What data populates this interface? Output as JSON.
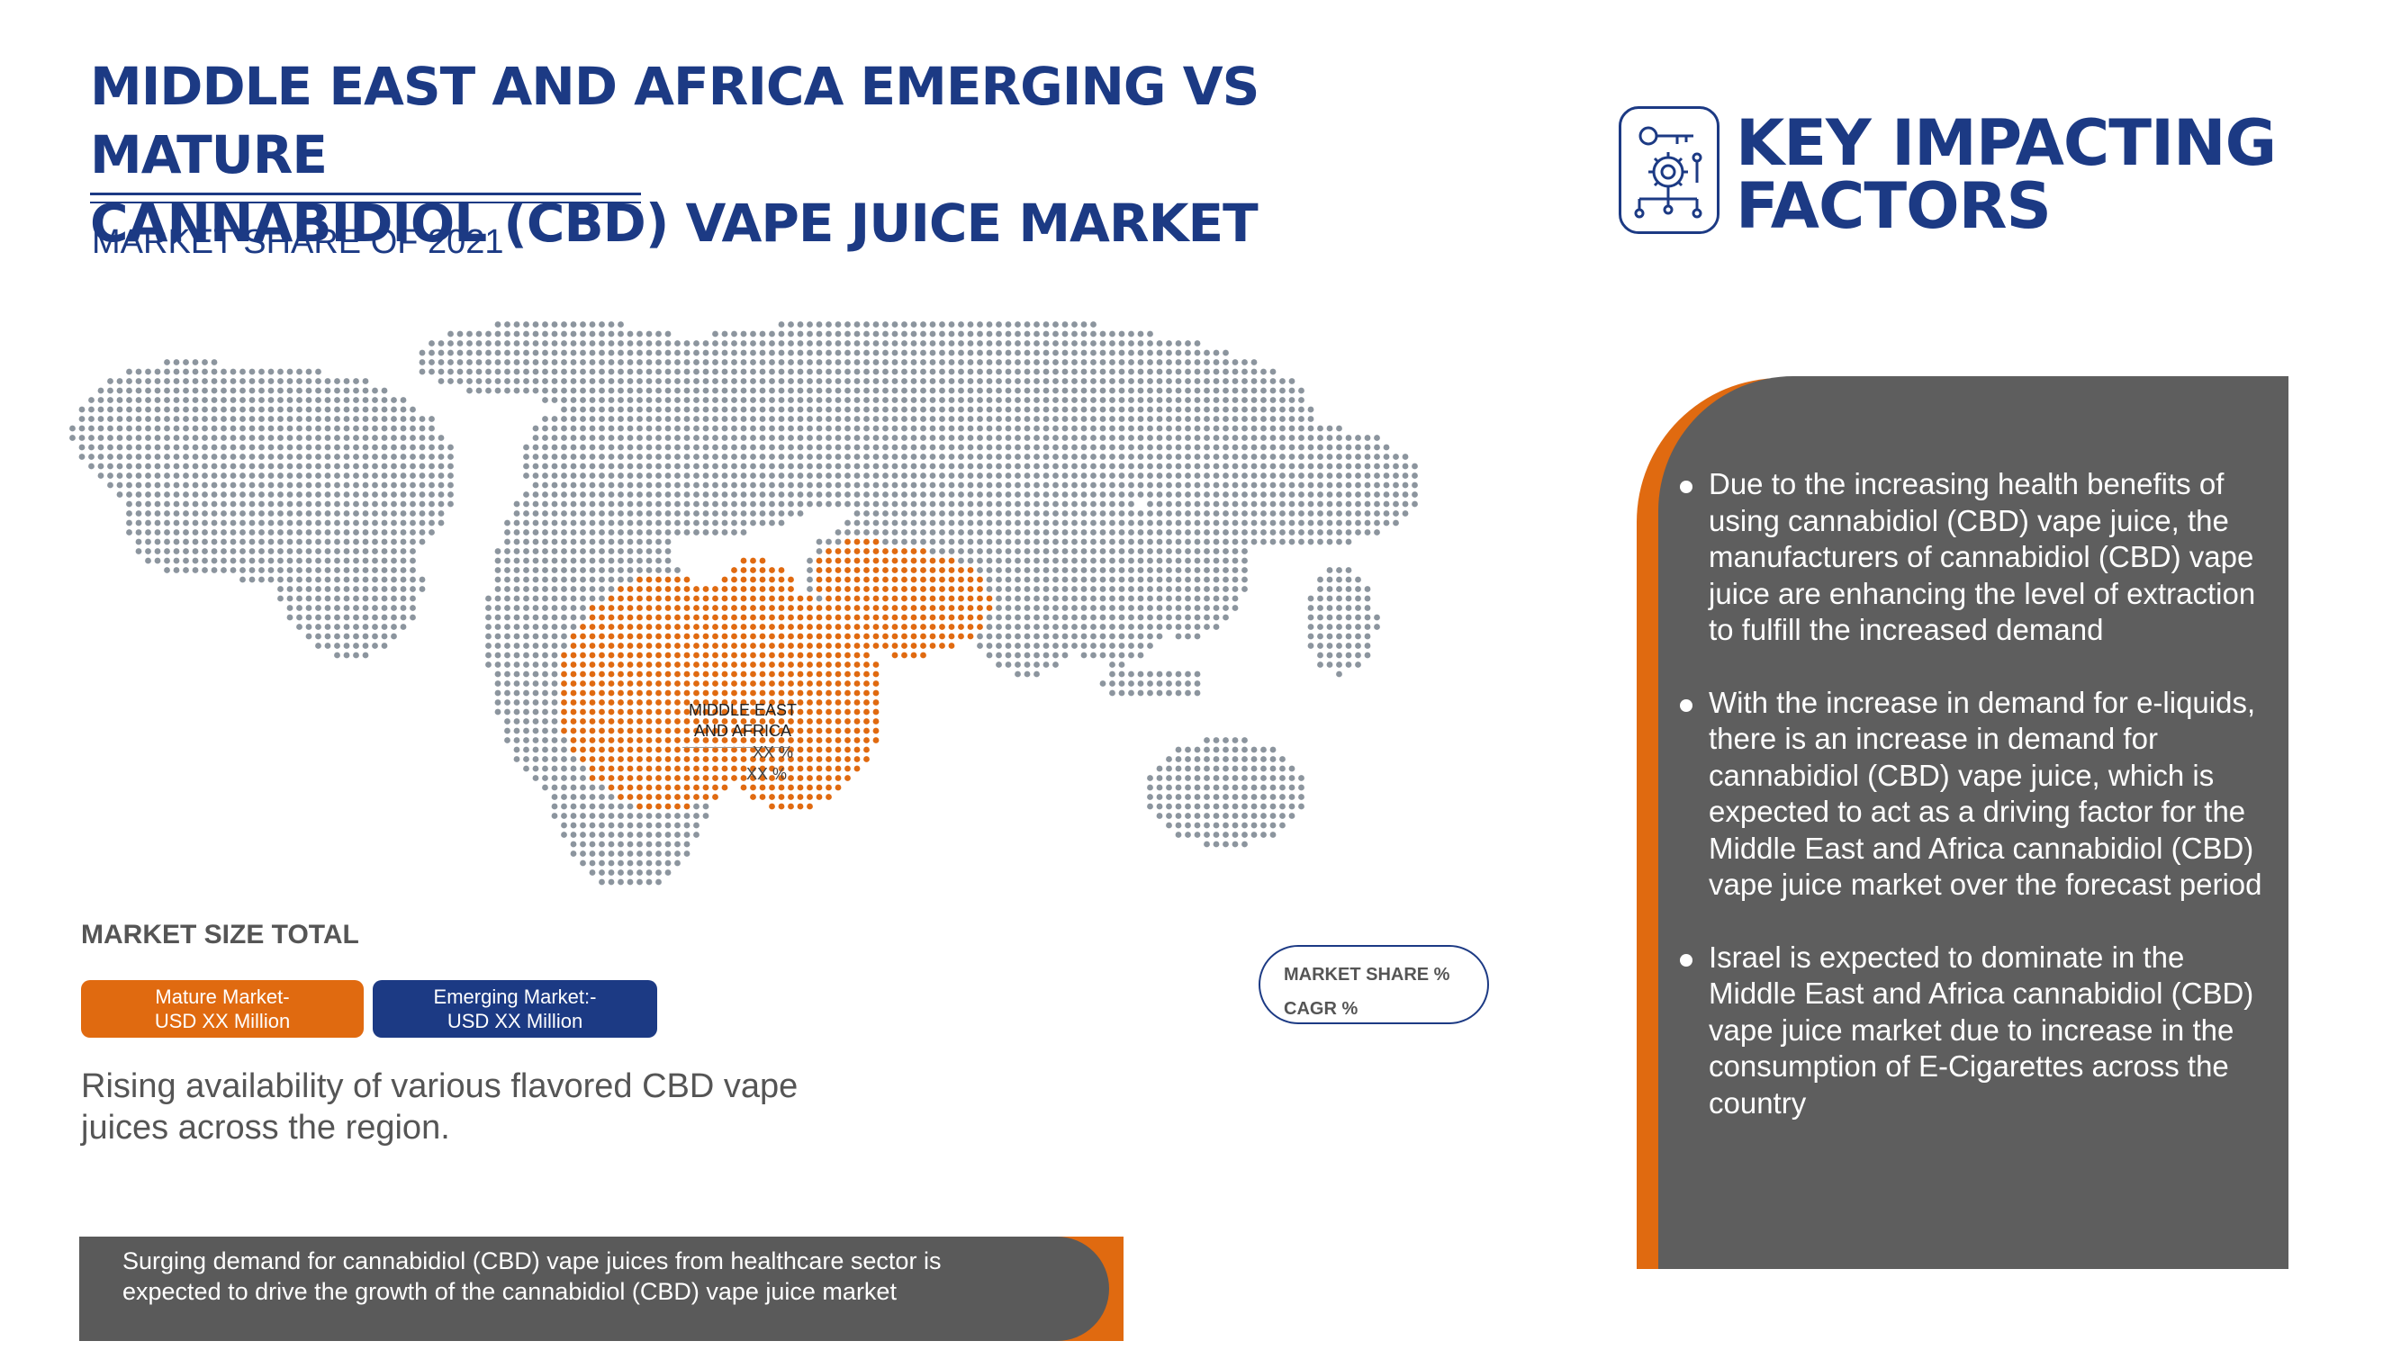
{
  "header": {
    "title_line1": "MIDDLE EAST AND AFRICA EMERGING VS MATURE",
    "title_line2": "CANNABIDIOL (CBD) VAPE JUICE MARKET",
    "subtitle": "MARKET SHARE OF 2021"
  },
  "key_factors": {
    "title_line1": "KEY IMPACTING",
    "title_line2": "FACTORS",
    "icon": "gears-key-network-icon",
    "items": [
      {
        "text": "Due to the increasing health benefits of using cannabidiol (CBD) vape juice, the manufacturers of cannabidiol (CBD) vape juice are enhancing the level of extraction to fulfill the increased demand"
      },
      {
        "text": "With the increase in demand for e-liquids, there is an increase in demand for cannabidiol (CBD) vape juice, which is expected to act as a driving factor for the Middle East and Africa cannabidiol (CBD) vape juice market over the forecast period"
      },
      {
        "text": "Israel is expected to dominate in the Middle East and Africa cannabidiol (CBD) vape juice market due to increase in the consumption of E-Cigarettes across the country"
      }
    ]
  },
  "map": {
    "region_label_line1": "MIDDLE EAST",
    "region_label_line2": "AND AFRICA",
    "value1": "XX %",
    "value2": "XX %",
    "highlight_color": "#e06a10",
    "base_color": "#8c959e"
  },
  "market_size": {
    "heading": "MARKET SIZE TOTAL",
    "mature_line1": "Mature Market-",
    "mature_line2": "USD XX Million",
    "emerging_line1": "Emerging Market:-",
    "emerging_line2": "USD XX Million"
  },
  "legend": {
    "share": "MARKET SHARE %",
    "cagr": "CAGR %"
  },
  "rising_text": "Rising availability of various flavored CBD vape juices across the region.",
  "bottom_text": "Surging demand for cannabidiol (CBD) vape juices from healthcare sector is expected to drive the growth of the cannabidiol (CBD) vape juice market",
  "colors": {
    "navy": "#1c3a84",
    "orange": "#e06a10",
    "grey": "#5e5e5e"
  }
}
